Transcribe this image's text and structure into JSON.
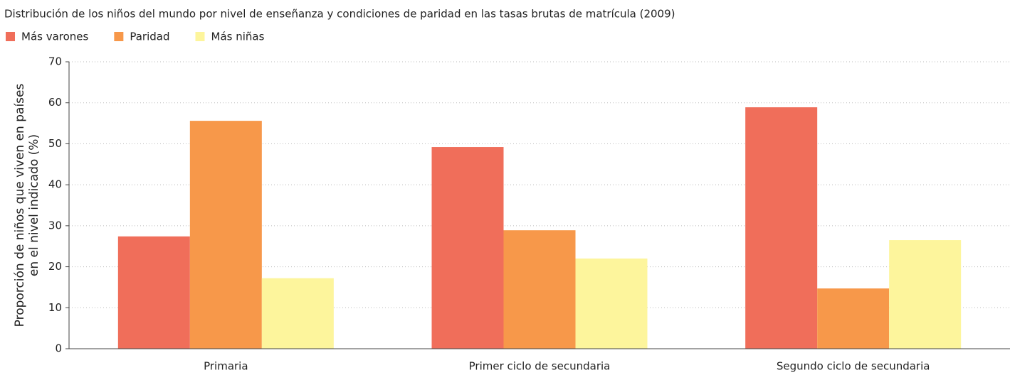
{
  "chart_data": {
    "type": "bar",
    "title": "Distribución de los niños del mundo por nivel de enseñanza y condiciones de paridad en las tasas brutas de matrícula (2009)",
    "ylabel": [
      "Proporción de niños que viven en países",
      "en el nivel indicado (%)"
    ],
    "categories": [
      "Primaria",
      "Primer ciclo de secundaria",
      "Segundo ciclo de secundaria"
    ],
    "series": [
      {
        "name": "Más varones",
        "color": "#f06e5a",
        "values": [
          27.4,
          49.2,
          58.9
        ]
      },
      {
        "name": "Paridad",
        "color": "#f7984a",
        "values": [
          55.6,
          28.9,
          14.7
        ]
      },
      {
        "name": "Más niñas",
        "color": "#fdf59c",
        "values": [
          17.2,
          22.0,
          26.5
        ]
      }
    ],
    "ylim": [
      0,
      70
    ],
    "yticks": [
      0,
      10,
      20,
      30,
      40,
      50,
      60,
      70
    ],
    "grid": true,
    "legend": "top-left"
  }
}
